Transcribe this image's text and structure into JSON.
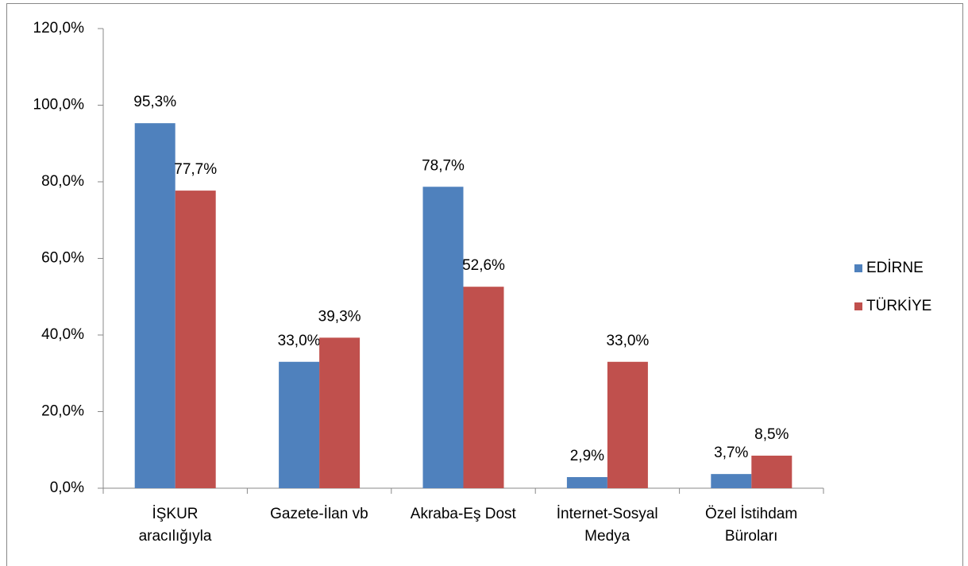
{
  "chart_data": {
    "type": "bar",
    "categories": [
      "İŞKUR\naracılığıyla",
      "Gazete-İlan vb",
      "Akraba-Eş Dost",
      "İnternet-Sosyal\nMedya",
      "Özel İstihdam\nBüroları"
    ],
    "series": [
      {
        "name": "EDİRNE",
        "color": "#4f81bd",
        "values": [
          95.3,
          33.0,
          78.7,
          2.9,
          3.7
        ],
        "value_labels": [
          "95,3%",
          "33,0%",
          "78,7%",
          "2,9%",
          "3,7%"
        ]
      },
      {
        "name": "TÜRKİYE",
        "color": "#c0504d",
        "values": [
          77.7,
          39.3,
          52.6,
          33.0,
          8.5
        ],
        "value_labels": [
          "77,7%",
          "39,3%",
          "52,6%",
          "33,0%",
          "8,5%"
        ]
      }
    ],
    "ylim": [
      0,
      120
    ],
    "yticks": [
      {
        "value": 0,
        "label": "0,0%"
      },
      {
        "value": 20,
        "label": "20,0%"
      },
      {
        "value": 40,
        "label": "40,0%"
      },
      {
        "value": 60,
        "label": "60,0%"
      },
      {
        "value": 80,
        "label": "80,0%"
      },
      {
        "value": 100,
        "label": "100,0%"
      },
      {
        "value": 120,
        "label": "120,0%"
      }
    ],
    "grid": false,
    "legend": "right"
  }
}
